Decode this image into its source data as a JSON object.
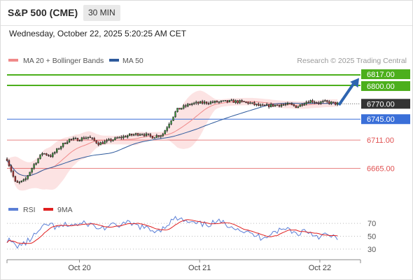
{
  "header": {
    "instrument": "S&P 500 (CME)",
    "timeframe": "30 MIN",
    "datetime": "Wednesday, October 22, 2025 5:20:25 AM CET"
  },
  "credit": "Research © 2025 Trading Central",
  "chart_data": [
    {
      "type": "line",
      "subtype": "candlestick",
      "legend": [
        {
          "name": "MA 20 + Bollinger Bands",
          "color": "#f08a8a"
        },
        {
          "name": "MA 50",
          "color": "#2e5a9c"
        }
      ],
      "legend_position": "top-left",
      "ylim": [
        6620,
        6825
      ],
      "x_ticks": [
        {
          "label": "Oct 20",
          "pos": 0.205
        },
        {
          "label": "Oct 21",
          "pos": 0.545
        },
        {
          "label": "Oct 22",
          "pos": 0.885
        }
      ],
      "price_levels": [
        {
          "value": 6817.0,
          "label": "6817.00",
          "style": "resistance",
          "color": "#4caf1c"
        },
        {
          "value": 6800.0,
          "label": "6800.00",
          "style": "resistance",
          "color": "#4caf1c"
        },
        {
          "value": 6770.0,
          "label": "6770.00",
          "style": "current",
          "color": "#333333"
        },
        {
          "value": 6745.0,
          "label": "6745.00",
          "style": "pivot",
          "color": "#3a6fd8"
        },
        {
          "value": 6711.0,
          "label": "6711.00",
          "style": "support",
          "color": "#e05050"
        },
        {
          "value": 6665.0,
          "label": "6665.00",
          "style": "support",
          "color": "#e05050"
        }
      ],
      "price_anchors": [
        [
          0.0,
          6680
        ],
        [
          0.025,
          6640
        ],
        [
          0.05,
          6645
        ],
        [
          0.075,
          6670
        ],
        [
          0.1,
          6690
        ],
        [
          0.125,
          6685
        ],
        [
          0.15,
          6700
        ],
        [
          0.175,
          6712
        ],
        [
          0.2,
          6712
        ],
        [
          0.23,
          6716
        ],
        [
          0.26,
          6705
        ],
        [
          0.3,
          6712
        ],
        [
          0.34,
          6718
        ],
        [
          0.38,
          6722
        ],
        [
          0.41,
          6716
        ],
        [
          0.44,
          6720
        ],
        [
          0.46,
          6740
        ],
        [
          0.48,
          6760
        ],
        [
          0.52,
          6770
        ],
        [
          0.56,
          6772
        ],
        [
          0.6,
          6773
        ],
        [
          0.64,
          6774
        ],
        [
          0.68,
          6772
        ],
        [
          0.72,
          6766
        ],
        [
          0.76,
          6768
        ],
        [
          0.8,
          6769
        ],
        [
          0.82,
          6765
        ],
        [
          0.84,
          6772
        ],
        [
          0.86,
          6775
        ],
        [
          0.88,
          6772
        ],
        [
          0.9,
          6773
        ],
        [
          0.935,
          6770
        ]
      ],
      "forecast_arrow": {
        "from": 6768,
        "to": 6812
      }
    },
    {
      "type": "line",
      "legend": [
        {
          "name": "RSI",
          "color": "#5b7fd6"
        },
        {
          "name": "9MA",
          "color": "#e02020"
        }
      ],
      "ylim": [
        20,
        80
      ],
      "y_ticks": [
        70,
        50,
        30
      ],
      "rsi_anchors": [
        [
          0.0,
          45
        ],
        [
          0.025,
          35
        ],
        [
          0.05,
          38
        ],
        [
          0.075,
          50
        ],
        [
          0.1,
          62
        ],
        [
          0.12,
          70
        ],
        [
          0.14,
          62
        ],
        [
          0.17,
          68
        ],
        [
          0.2,
          68
        ],
        [
          0.23,
          70
        ],
        [
          0.26,
          62
        ],
        [
          0.3,
          66
        ],
        [
          0.34,
          70
        ],
        [
          0.38,
          65
        ],
        [
          0.41,
          58
        ],
        [
          0.44,
          62
        ],
        [
          0.46,
          72
        ],
        [
          0.48,
          78
        ],
        [
          0.52,
          70
        ],
        [
          0.56,
          68
        ],
        [
          0.6,
          72
        ],
        [
          0.64,
          66
        ],
        [
          0.68,
          55
        ],
        [
          0.72,
          48
        ],
        [
          0.76,
          58
        ],
        [
          0.8,
          62
        ],
        [
          0.82,
          52
        ],
        [
          0.84,
          60
        ],
        [
          0.86,
          55
        ],
        [
          0.88,
          50
        ],
        [
          0.9,
          52
        ],
        [
          0.935,
          46
        ]
      ]
    }
  ]
}
